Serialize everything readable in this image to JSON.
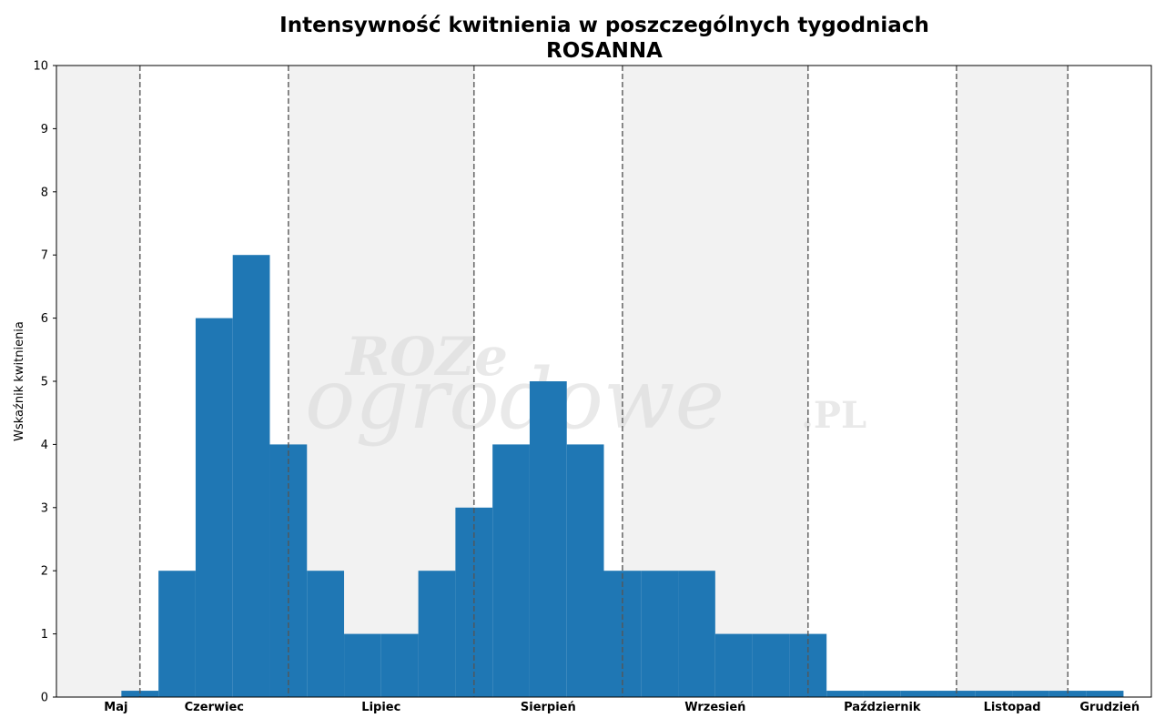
{
  "chart_data": {
    "type": "bar",
    "title": "Intensywność kwitnienia w poszczególnych tygodniach",
    "subtitle": "ROSANNA",
    "ylabel": "Wskaźnik kwitnienia",
    "xlabel": "",
    "ylim": [
      0,
      10
    ],
    "yticks": [
      0,
      1,
      2,
      3,
      4,
      5,
      6,
      7,
      8,
      9,
      10
    ],
    "values": [
      0.1,
      2,
      6,
      7,
      4,
      2,
      1,
      1,
      2,
      3,
      4,
      5,
      4,
      2,
      2,
      2,
      1,
      1,
      1,
      0.1,
      0.1,
      0.1,
      0.1,
      0.1,
      0.1,
      0.1,
      0.1
    ],
    "months": [
      {
        "name": "Maj",
        "start": -0.25,
        "end": 0.0,
        "shaded": true
      },
      {
        "name": "Czerwiec",
        "start": 0.0,
        "end": 4.0,
        "shaded": false
      },
      {
        "name": "Lipiec",
        "start": 4.0,
        "end": 9.0,
        "shaded": true
      },
      {
        "name": "Sierpień",
        "start": 9.0,
        "end": 13.0,
        "shaded": false
      },
      {
        "name": "Wrzesień",
        "start": 13.0,
        "end": 18.0,
        "shaded": true
      },
      {
        "name": "Październik",
        "start": 18.0,
        "end": 22.0,
        "shaded": false
      },
      {
        "name": "Listopad",
        "start": 22.0,
        "end": 25.0,
        "shaded": true
      },
      {
        "name": "Grudzień",
        "start": 25.0,
        "end": 26.0,
        "shaded": false
      }
    ],
    "xlim": [
      -2.25,
      27.25
    ],
    "grid": false,
    "colors": {
      "bar": "#1f77b4",
      "shade": "#f2f2f2",
      "divider": "#555555"
    },
    "watermark": {
      "line1": "ROZe",
      "line2": "ogrodowe",
      "line3": ".PL"
    }
  }
}
